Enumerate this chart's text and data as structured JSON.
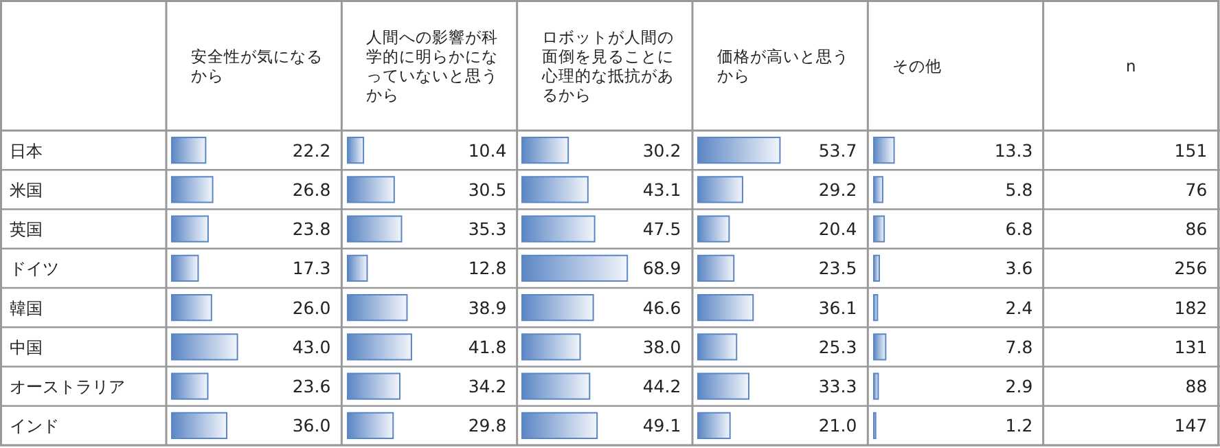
{
  "chart_data": [
    {
      "type": "bar",
      "orientation": "horizontal",
      "title": "安全性が気になるから",
      "categories": [
        "日本",
        "米国",
        "英国",
        "ドイツ",
        "韓国",
        "中国",
        "オーストラリア",
        "インド"
      ],
      "values": [
        22.2,
        26.8,
        23.8,
        17.3,
        26.0,
        43.0,
        23.6,
        36.0
      ],
      "value_labels": [
        "22.2",
        "26.8",
        "23.8",
        "17.3",
        "26.0",
        "43.0",
        "23.6",
        "36.0"
      ],
      "color": "#5b86c4"
    },
    {
      "type": "bar",
      "orientation": "horizontal",
      "title": "人間への影響が科学的に明らかになっていないと思うから",
      "categories": [
        null,
        null,
        null,
        null,
        null,
        null,
        null,
        null
      ],
      "values": [
        10.4,
        30.5,
        35.3,
        12.8,
        38.9,
        41.8,
        34.2,
        29.8
      ],
      "value_labels": [
        "10.4",
        "30.5",
        "35.3",
        "12.8",
        "38.9",
        "41.8",
        "34.2",
        "29.8"
      ],
      "color": "#5b86c4"
    },
    {
      "type": "bar",
      "orientation": "horizontal",
      "title": "ロボットが人間の面倒を見ることに心理的な抵抗があるから",
      "categories": [
        null,
        null,
        null,
        null,
        null,
        null,
        null,
        null
      ],
      "values": [
        30.2,
        43.1,
        47.5,
        68.9,
        46.6,
        38.0,
        44.2,
        49.1
      ],
      "value_labels": [
        "30.2",
        "43.1",
        "47.5",
        "68.9",
        "46.6",
        "38.0",
        "44.2",
        "49.1"
      ],
      "color": "#5b86c4"
    },
    {
      "type": "bar",
      "orientation": "horizontal",
      "title": "価格が高いと思うから",
      "categories": [
        null,
        null,
        null,
        null,
        null,
        null,
        null,
        null
      ],
      "values": [
        53.7,
        29.2,
        20.4,
        23.5,
        36.1,
        25.3,
        33.3,
        21.0
      ],
      "value_labels": [
        "53.7",
        "29.2",
        "20.4",
        "23.5",
        "36.1",
        "25.3",
        "33.3",
        "21.0"
      ],
      "color": "#5b86c4"
    },
    {
      "type": "bar",
      "orientation": "horizontal",
      "title": "その他",
      "categories": [
        null,
        null,
        null,
        null,
        null,
        null,
        null,
        null
      ],
      "values": [
        13.3,
        5.8,
        6.8,
        3.6,
        2.4,
        7.8,
        2.9,
        1.2
      ],
      "value_labels": [
        "13.3",
        "5.8",
        "6.8",
        "3.6",
        "2.4",
        "7.8",
        "2.9",
        "1.2"
      ],
      "color": "#5b86c4"
    },
    {
      "type": "other",
      "title": "n",
      "annotations": [
        "151",
        "76",
        "86",
        "256",
        "182",
        "131",
        "88",
        "147"
      ]
    }
  ]
}
